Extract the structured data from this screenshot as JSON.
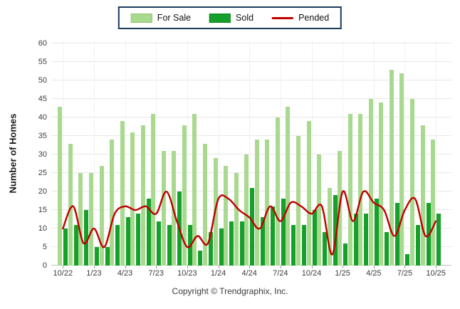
{
  "legend": {
    "items": [
      {
        "label": "For Sale",
        "color": "#a9d98f",
        "type": "bar"
      },
      {
        "label": "Sold",
        "color": "#14a02b",
        "type": "bar"
      },
      {
        "label": "Pended",
        "color": "#c00000",
        "type": "line"
      }
    ]
  },
  "y_axis": {
    "title": "Number of Homes",
    "min": 0,
    "max": 60,
    "step": 5
  },
  "footer": {
    "copyright": "Copyright © Trendgraphix, Inc."
  },
  "chart_data": {
    "type": "bar",
    "title": "",
    "xlabel": "",
    "ylabel": "Number of Homes",
    "ylim": [
      0,
      60
    ],
    "y_step": 5,
    "grid": true,
    "legend_position": "top-center",
    "categories": [
      "10/22",
      "11/22",
      "12/22",
      "1/23",
      "2/23",
      "3/23",
      "4/23",
      "5/23",
      "6/23",
      "7/23",
      "8/23",
      "9/23",
      "10/23",
      "11/23",
      "12/23",
      "1/24",
      "2/24",
      "3/24",
      "4/24",
      "5/24",
      "6/24",
      "7/24",
      "8/24",
      "9/24",
      "10/24",
      "11/24",
      "12/24",
      "1/25",
      "2/25",
      "3/25",
      "4/25",
      "5/25",
      "6/25",
      "7/25",
      "8/25",
      "9/25",
      "10/25"
    ],
    "x_tick_labels": [
      "10/22",
      "1/23",
      "4/23",
      "7/23",
      "10/23",
      "1/24",
      "4/24",
      "7/24",
      "10/24",
      "1/25",
      "4/25",
      "7/25",
      "10/25"
    ],
    "x_tick_every": 3,
    "series": [
      {
        "name": "For Sale",
        "type": "bar",
        "color": "#a9d98f",
        "values": [
          43,
          33,
          25,
          25,
          27,
          34,
          39,
          36,
          38,
          41,
          31,
          31,
          38,
          41,
          33,
          29,
          27,
          25,
          30,
          34,
          34,
          40,
          43,
          35,
          39,
          30,
          21,
          31,
          41,
          41,
          45,
          44,
          53,
          52,
          45,
          38,
          34
        ]
      },
      {
        "name": "Sold",
        "type": "bar",
        "color": "#14a02b",
        "values": [
          10,
          11,
          15,
          5,
          5,
          11,
          13,
          14,
          18,
          12,
          11,
          20,
          11,
          4,
          9,
          10,
          12,
          12,
          21,
          13,
          16,
          18,
          11,
          11,
          15,
          9,
          19,
          6,
          14,
          14,
          18,
          9,
          17,
          3,
          11,
          17,
          14
        ]
      },
      {
        "name": "Pended",
        "type": "line",
        "color": "#c00000",
        "values": [
          10,
          16,
          6,
          10,
          5,
          14,
          16,
          15,
          16,
          14,
          20,
          12,
          5,
          8,
          6,
          18,
          18,
          15,
          13,
          10,
          16,
          12,
          17,
          16,
          14,
          16,
          3,
          20,
          12,
          20,
          17,
          15,
          8,
          15,
          18,
          8,
          12
        ]
      }
    ]
  }
}
